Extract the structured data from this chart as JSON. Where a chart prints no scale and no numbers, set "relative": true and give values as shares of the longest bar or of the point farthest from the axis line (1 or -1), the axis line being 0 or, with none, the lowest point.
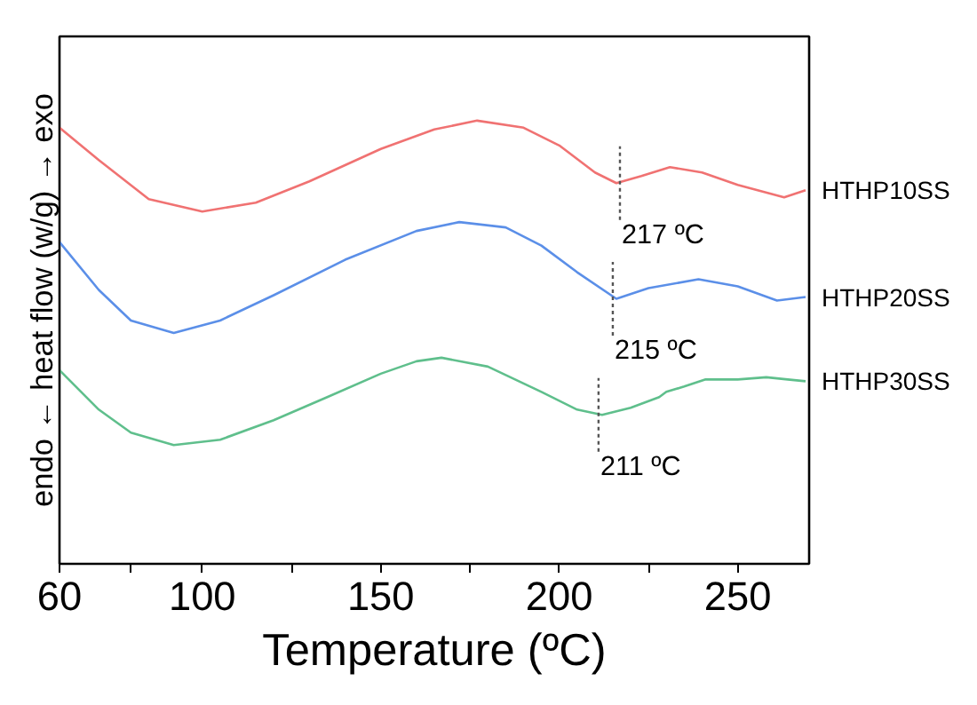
{
  "chart_data": {
    "type": "line",
    "relative": true,
    "xlabel": "Temperature (ºC)",
    "ylabel": "endo ← heat flow (w/g) → exo",
    "xlim": [
      60,
      270
    ],
    "xticks": [
      60,
      {
        "value": 80,
        "label": null
      },
      100,
      {
        "value": 125,
        "label": null
      },
      150,
      {
        "value": 175,
        "label": null
      },
      200,
      {
        "value": 225,
        "label": null
      },
      250
    ],
    "grid": false,
    "legend": false,
    "series": [
      {
        "name": "HTHP10SS",
        "color": "#f07272",
        "x": [
          60,
          71,
          85,
          100,
          115,
          130,
          150,
          165,
          177,
          190,
          200,
          210,
          216,
          223,
          231,
          240,
          250,
          263,
          269
        ],
        "values": [
          0.984,
          0.911,
          0.823,
          0.795,
          0.815,
          0.863,
          0.936,
          0.98,
          1.0,
          0.984,
          0.944,
          0.883,
          0.859,
          0.875,
          0.895,
          0.883,
          0.855,
          0.827,
          0.843
        ]
      },
      {
        "name": "HTHP20SS",
        "color": "#5b8fe8",
        "x": [
          60,
          71,
          80,
          92,
          105,
          120,
          140,
          160,
          172,
          185,
          195,
          205,
          216,
          225,
          239,
          250,
          261,
          269
        ],
        "values": [
          0.726,
          0.618,
          0.549,
          0.521,
          0.549,
          0.606,
          0.686,
          0.751,
          0.771,
          0.759,
          0.718,
          0.658,
          0.598,
          0.622,
          0.642,
          0.626,
          0.594,
          0.602
        ]
      },
      {
        "name": "HTHP30SS",
        "color": "#5fbf8c",
        "x": [
          60,
          71,
          80,
          92,
          105,
          120,
          135,
          150,
          160,
          167,
          180,
          195,
          205,
          212,
          220,
          228,
          230,
          235,
          241,
          250,
          258,
          264,
          269
        ],
        "values": [
          0.437,
          0.348,
          0.296,
          0.268,
          0.28,
          0.324,
          0.376,
          0.429,
          0.457,
          0.465,
          0.445,
          0.388,
          0.348,
          0.336,
          0.352,
          0.376,
          0.388,
          0.4,
          0.416,
          0.416,
          0.421,
          0.416,
          0.412
        ]
      }
    ],
    "annotations": [
      {
        "text": "217 ºC",
        "x": 217,
        "y": 0.859
      },
      {
        "text": "215 ºC",
        "x": 215,
        "y": 0.598
      },
      {
        "text": "211 ºC",
        "x": 211,
        "y": 0.336
      }
    ]
  }
}
